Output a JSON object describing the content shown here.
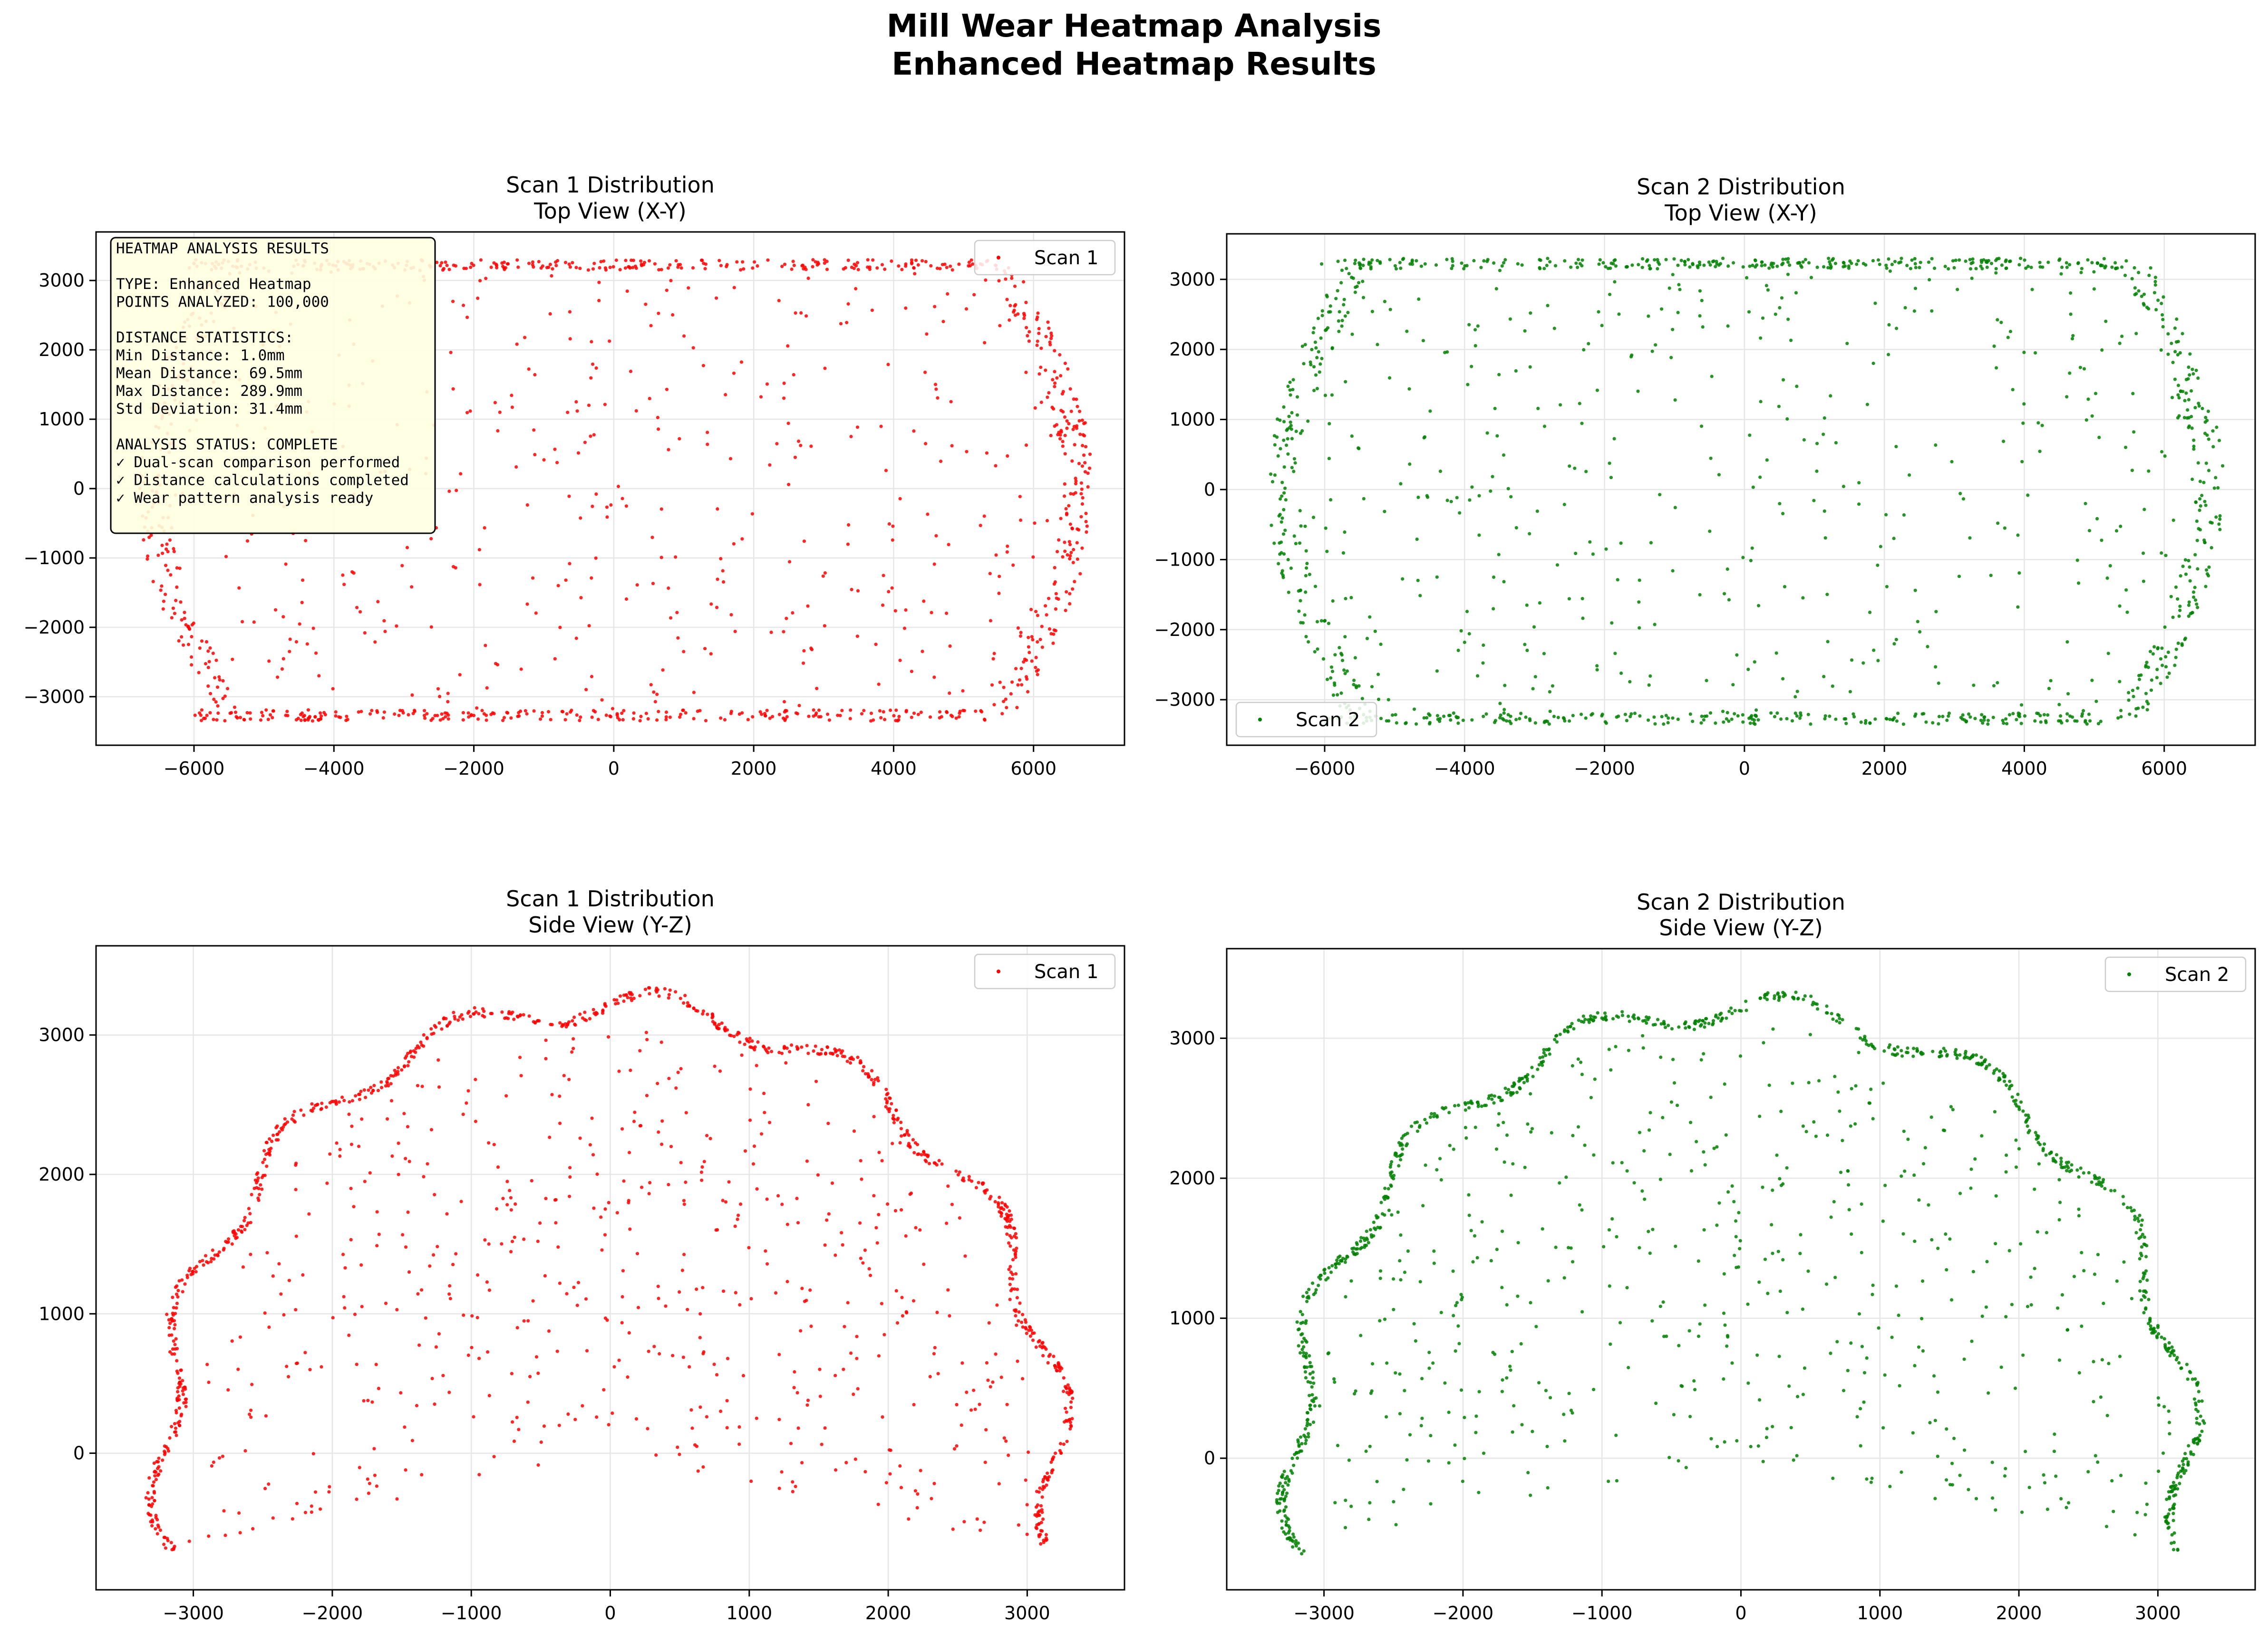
{
  "figure": {
    "title_line1": "Mill Wear Heatmap Analysis",
    "title_line2": "Enhanced Heatmap Results"
  },
  "colors": {
    "scan1": "#ff0000",
    "scan2": "#008000",
    "grid": "#e6e6e6",
    "textbox_bg": "#ffffe0"
  },
  "chart_data": [
    {
      "type": "scatter",
      "title_line1": "Scan 1 Distribution",
      "title_line2": "Top View (X-Y)",
      "series": [
        {
          "name": "Scan 1",
          "color": "#ff0000",
          "shape": "top_xy",
          "seed": 11
        }
      ],
      "xlim": [
        -7400,
        7300
      ],
      "ylim": [
        -3700,
        3700
      ],
      "xticks": [
        -6000,
        -4000,
        -2000,
        0,
        2000,
        4000,
        6000
      ],
      "yticks": [
        -3000,
        -2000,
        -1000,
        0,
        1000,
        2000,
        3000
      ],
      "grid": true,
      "legend": "top-right",
      "annotation": [
        "HEATMAP ANALYSIS RESULTS",
        "",
        "TYPE: Enhanced Heatmap",
        "POINTS ANALYZED: 100,000",
        "",
        "DISTANCE STATISTICS:",
        "Min Distance: 1.0mm",
        "Mean Distance: 69.5mm",
        "Max Distance: 289.9mm",
        "Std Deviation: 31.4mm",
        "",
        "ANALYSIS STATUS: COMPLETE",
        "✓ Dual-scan comparison performed",
        "✓ Distance calculations completed",
        "✓ Wear pattern analysis ready"
      ]
    },
    {
      "type": "scatter",
      "title_line1": "Scan 2 Distribution",
      "title_line2": "Top View (X-Y)",
      "series": [
        {
          "name": "Scan 2",
          "color": "#008000",
          "shape": "top_xy",
          "seed": 23
        }
      ],
      "xlim": [
        -7400,
        7300
      ],
      "ylim": [
        -3650,
        3650
      ],
      "xticks": [
        -6000,
        -4000,
        -2000,
        0,
        2000,
        4000,
        6000
      ],
      "yticks": [
        -3000,
        -2000,
        -1000,
        0,
        1000,
        2000,
        3000
      ],
      "grid": true,
      "legend": "bottom-left"
    },
    {
      "type": "scatter",
      "title_line1": "Scan 1 Distribution",
      "title_line2": "Side View (Y-Z)",
      "series": [
        {
          "name": "Scan 1",
          "color": "#ff0000",
          "shape": "side_yz",
          "seed": 37
        }
      ],
      "xlim": [
        -3700,
        3700
      ],
      "ylim": [
        -980,
        3640
      ],
      "xticks": [
        -3000,
        -2000,
        -1000,
        0,
        1000,
        2000,
        3000
      ],
      "yticks": [
        0,
        1000,
        2000,
        3000
      ],
      "grid": true,
      "legend": "top-right"
    },
    {
      "type": "scatter",
      "title_line1": "Scan 2 Distribution",
      "title_line2": "Side View (Y-Z)",
      "series": [
        {
          "name": "Scan 2",
          "color": "#008000",
          "shape": "side_yz",
          "seed": 53
        }
      ],
      "xlim": [
        -3700,
        3700
      ],
      "ylim": [
        -940,
        3640
      ],
      "xticks": [
        -3000,
        -2000,
        -1000,
        0,
        1000,
        2000,
        3000
      ],
      "yticks": [
        0,
        1000,
        2000,
        3000
      ],
      "grid": true,
      "legend": "top-right"
    }
  ]
}
